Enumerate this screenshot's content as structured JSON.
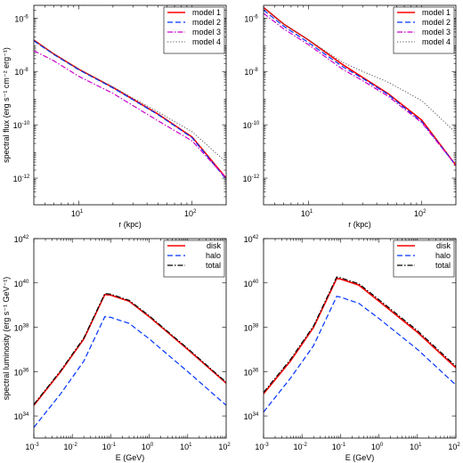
{
  "chart_data": [
    {
      "type": "line",
      "xscale": "log",
      "yscale": "log",
      "xlim": [
        4,
        200
      ],
      "ylim": [
        1e-13,
        3e-06
      ],
      "xlabel": "r (kpc)",
      "ylabel": "spectral flux (erg s⁻¹ cm⁻² erg⁻¹)",
      "xticks": [
        {
          "base": "10",
          "exp": "1",
          "value": 10
        },
        {
          "base": "10",
          "exp": "2",
          "value": 100
        }
      ],
      "yticks": [
        {
          "base": "10",
          "exp": "-6",
          "value": 1e-06
        },
        {
          "base": "10",
          "exp": "-8",
          "value": 1e-08
        },
        {
          "base": "10",
          "exp": "-10",
          "value": 1e-10
        },
        {
          "base": "10",
          "exp": "-12",
          "value": 1e-12
        }
      ],
      "legend": "top-right",
      "series": [
        {
          "name": "model 1",
          "color": "#ff0000",
          "dash": "",
          "width": 1.6,
          "x": [
            4,
            6,
            10,
            20,
            50,
            100,
            200
          ],
          "y": [
            1.5e-07,
            4.5e-08,
            1.2e-08,
            2.5e-09,
            2.5e-10,
            3.5e-11,
            1e-12
          ]
        },
        {
          "name": "model 2",
          "color": "#0033ff",
          "dash": "6,3",
          "width": 1.2,
          "x": [
            4,
            6,
            10,
            20,
            50,
            100,
            200
          ],
          "y": [
            1.4e-07,
            4.3e-08,
            1.15e-08,
            2.4e-09,
            2.4e-10,
            3.3e-11,
            9e-13
          ]
        },
        {
          "name": "model 3",
          "color": "#cc00cc",
          "dash": "6,2,1.5,2",
          "width": 1.2,
          "x": [
            4,
            6,
            10,
            20,
            50,
            100,
            200
          ],
          "y": [
            6e-08,
            2.5e-08,
            6.5e-09,
            1.5e-09,
            1.4e-10,
            2.5e-11,
            1e-12
          ]
        },
        {
          "name": "model 4",
          "color": "#555555",
          "dash": "1.2,2",
          "width": 1.0,
          "x": [
            4,
            6,
            10,
            20,
            50,
            100,
            200
          ],
          "y": [
            1.5e-07,
            4.5e-08,
            1.2e-08,
            2.6e-09,
            3e-10,
            5.5e-11,
            4e-12
          ]
        }
      ]
    },
    {
      "type": "line",
      "xscale": "log",
      "yscale": "log",
      "xlim": [
        4,
        200
      ],
      "ylim": [
        1e-13,
        3e-06
      ],
      "xlabel": "r (kpc)",
      "ylabel": "",
      "xticks": [
        {
          "base": "10",
          "exp": "1",
          "value": 10
        },
        {
          "base": "10",
          "exp": "2",
          "value": 100
        }
      ],
      "yticks": [
        {
          "base": "10",
          "exp": "-6",
          "value": 1e-06
        },
        {
          "base": "10",
          "exp": "-8",
          "value": 1e-08
        },
        {
          "base": "10",
          "exp": "-10",
          "value": 1e-10
        },
        {
          "base": "10",
          "exp": "-12",
          "value": 1e-12
        }
      ],
      "legend": "top-right",
      "series": [
        {
          "name": "model 1",
          "color": "#ff0000",
          "dash": "",
          "width": 1.6,
          "x": [
            4,
            6,
            10,
            20,
            30,
            50,
            100,
            200
          ],
          "y": [
            2.5e-06,
            6e-07,
            1.5e-07,
            1.8e-08,
            6e-09,
            1.5e-09,
            1.5e-10,
            3e-12
          ]
        },
        {
          "name": "model 2",
          "color": "#0033ff",
          "dash": "6,3",
          "width": 1.2,
          "x": [
            4,
            6,
            10,
            20,
            30,
            50,
            100,
            200
          ],
          "y": [
            2e-06,
            5e-07,
            1.2e-07,
            1.5e-08,
            5.5e-09,
            1.4e-09,
            1.3e-10,
            3e-12
          ]
        },
        {
          "name": "model 3",
          "color": "#cc00cc",
          "dash": "6,2,1.5,2",
          "width": 1.2,
          "x": [
            4,
            6,
            10,
            20,
            30,
            50,
            100,
            200
          ],
          "y": [
            1.5e-06,
            4e-07,
            1e-07,
            1.2e-08,
            4.5e-09,
            1.2e-09,
            1.2e-10,
            3e-12
          ]
        },
        {
          "name": "model 4",
          "color": "#555555",
          "dash": "1.2,2",
          "width": 1.0,
          "x": [
            4,
            6,
            10,
            20,
            30,
            50,
            100,
            200
          ],
          "y": [
            2.5e-06,
            6e-07,
            1.5e-07,
            2.2e-08,
            1e-08,
            4e-09,
            8e-10,
            5e-11
          ]
        }
      ]
    },
    {
      "type": "line",
      "xscale": "log",
      "yscale": "log",
      "xlim": [
        0.001,
        100
      ],
      "ylim": [
        1e+33,
        1e+42
      ],
      "xlabel": "E (GeV)",
      "ylabel": "spectral luminosity (erg s⁻¹ GeV⁻¹)",
      "xticks": [
        {
          "base": "10",
          "exp": "-3",
          "value": 0.001
        },
        {
          "base": "10",
          "exp": "-2",
          "value": 0.01
        },
        {
          "base": "10",
          "exp": "-1",
          "value": 0.1
        },
        {
          "base": "10",
          "exp": "0",
          "value": 1
        },
        {
          "base": "10",
          "exp": "1",
          "value": 10
        },
        {
          "base": "10",
          "exp": "2",
          "value": 100
        }
      ],
      "yticks": [
        {
          "base": "10",
          "exp": "34",
          "value": 1e+34
        },
        {
          "base": "10",
          "exp": "36",
          "value": 1e+36
        },
        {
          "base": "10",
          "exp": "38",
          "value": 1e+38
        },
        {
          "base": "10",
          "exp": "40",
          "value": 1e+40
        },
        {
          "base": "10",
          "exp": "42",
          "value": 1e+42
        }
      ],
      "legend": "top-right",
      "series": [
        {
          "name": "disk",
          "color": "#ff0000",
          "dash": "",
          "width": 1.6,
          "x": [
            0.001,
            0.005,
            0.02,
            0.07,
            0.1,
            0.3,
            1,
            10,
            100
          ],
          "y": [
            3e+34,
            1e+36,
            3e+37,
            3e+39,
            2.8e+39,
            1.5e+39,
            3e+38,
            1e+37,
            3e+35
          ]
        },
        {
          "name": "halo",
          "color": "#0033ff",
          "dash": "6,3",
          "width": 1.2,
          "x": [
            0.001,
            0.005,
            0.02,
            0.07,
            0.1,
            0.3,
            1,
            10,
            100
          ],
          "y": [
            3e+33,
            1e+35,
            3e+36,
            3e+38,
            2.8e+38,
            1.5e+38,
            3e+37,
            1e+36,
            3e+34
          ]
        },
        {
          "name": "total",
          "color": "#000000",
          "dash": "6,2,1.5,2",
          "width": 1.2,
          "x": [
            0.001,
            0.005,
            0.02,
            0.07,
            0.1,
            0.3,
            1,
            10,
            100
          ],
          "y": [
            3.3e+34,
            1.1e+36,
            3.3e+37,
            3.3e+39,
            3.1e+39,
            1.65e+39,
            3.3e+38,
            1.1e+37,
            3.3e+35
          ]
        }
      ]
    },
    {
      "type": "line",
      "xscale": "log",
      "yscale": "log",
      "xlim": [
        0.001,
        100
      ],
      "ylim": [
        1e+33,
        1e+42
      ],
      "xlabel": "E (GeV)",
      "ylabel": "",
      "xticks": [
        {
          "base": "10",
          "exp": "-3",
          "value": 0.001
        },
        {
          "base": "10",
          "exp": "-2",
          "value": 0.01
        },
        {
          "base": "10",
          "exp": "-1",
          "value": 0.1
        },
        {
          "base": "10",
          "exp": "0",
          "value": 1
        },
        {
          "base": "10",
          "exp": "1",
          "value": 10
        },
        {
          "base": "10",
          "exp": "2",
          "value": 100
        }
      ],
      "yticks": [
        {
          "base": "10",
          "exp": "34",
          "value": 1e+34
        },
        {
          "base": "10",
          "exp": "36",
          "value": 1e+36
        },
        {
          "base": "10",
          "exp": "38",
          "value": 1e+38
        },
        {
          "base": "10",
          "exp": "40",
          "value": 1e+40
        },
        {
          "base": "10",
          "exp": "42",
          "value": 1e+42
        }
      ],
      "legend": "top-right",
      "series": [
        {
          "name": "disk",
          "color": "#ff0000",
          "dash": "",
          "width": 1.6,
          "x": [
            0.001,
            0.005,
            0.02,
            0.08,
            0.1,
            0.3,
            1,
            10,
            100
          ],
          "y": [
            1e+35,
            3e+36,
            1e+38,
            1.6e+40,
            1.5e+40,
            8e+39,
            1.5e+39,
            6e+37,
            1.5e+36
          ]
        },
        {
          "name": "halo",
          "color": "#0033ff",
          "dash": "6,3",
          "width": 1.2,
          "x": [
            0.001,
            0.005,
            0.02,
            0.08,
            0.1,
            0.3,
            1,
            10,
            100
          ],
          "y": [
            1.5e+34,
            5e+35,
            1.5e+37,
            2.5e+39,
            2.3e+39,
            1.2e+39,
            2.5e+38,
            1e+37,
            2.5e+35
          ]
        },
        {
          "name": "total",
          "color": "#000000",
          "dash": "6,2,1.5,2",
          "width": 1.2,
          "x": [
            0.001,
            0.005,
            0.02,
            0.08,
            0.1,
            0.3,
            1,
            10,
            100
          ],
          "y": [
            1.15e+35,
            3.5e+36,
            1.15e+38,
            1.85e+40,
            1.73e+40,
            9.2e+39,
            1.75e+39,
            7e+37,
            1.75e+36
          ]
        }
      ]
    }
  ]
}
